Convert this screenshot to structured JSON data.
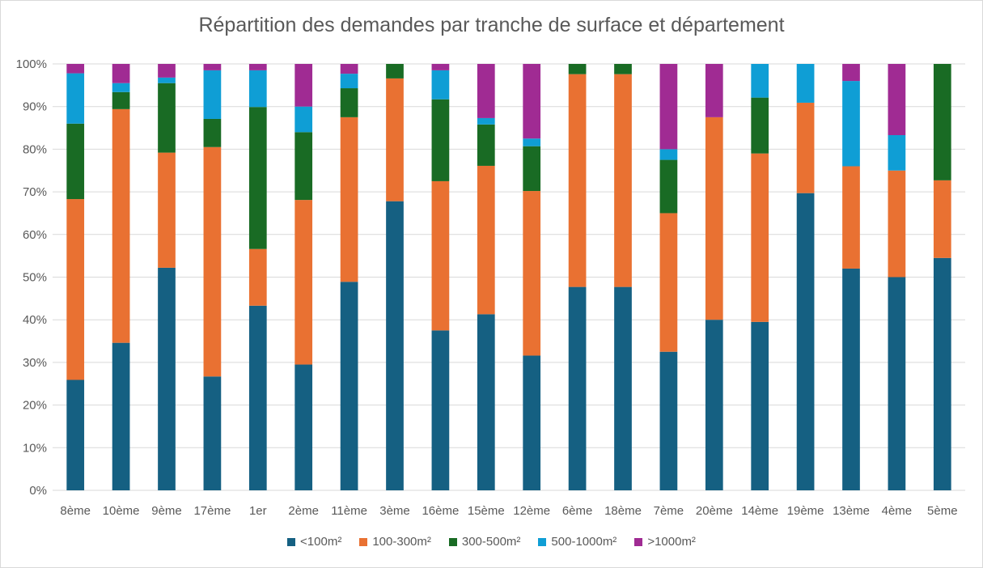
{
  "chart_data": {
    "type": "bar",
    "stacked": true,
    "title": "Répartition des demandes par tranche de surface et département",
    "xlabel": "",
    "ylabel": "",
    "ylim": [
      0,
      100
    ],
    "y_ticks": [
      "0%",
      "10%",
      "20%",
      "30%",
      "40%",
      "50%",
      "60%",
      "70%",
      "80%",
      "90%",
      "100%"
    ],
    "grid": true,
    "legend_position": "bottom",
    "categories": [
      "8ème",
      "10ème",
      "9ème",
      "17ème",
      "1er",
      "2ème",
      "11ème",
      "3ème",
      "16ème",
      "15ème",
      "12ème",
      "6ème",
      "18ème",
      "7ème",
      "20ème",
      "14ème",
      "19ème",
      "13ème",
      "4ème",
      "5ème"
    ],
    "series": [
      {
        "name": "<100m²",
        "color": "#156082",
        "values": [
          25.9,
          34.6,
          52.2,
          26.7,
          43.3,
          29.5,
          48.9,
          67.8,
          37.5,
          41.3,
          31.6,
          47.7,
          47.7,
          32.5,
          40.0,
          39.5,
          69.7,
          52.0,
          50.0,
          54.5
        ]
      },
      {
        "name": "100-300m²",
        "color": "#E97132",
        "values": [
          42.4,
          54.8,
          27.0,
          53.8,
          13.3,
          38.6,
          38.6,
          28.8,
          35.0,
          34.8,
          38.6,
          49.9,
          49.9,
          32.5,
          47.5,
          39.5,
          21.2,
          24.0,
          25.0,
          18.2
        ]
      },
      {
        "name": "300-500m²",
        "color": "#196B24",
        "values": [
          17.7,
          4.0,
          16.3,
          6.6,
          33.3,
          15.9,
          6.8,
          3.4,
          19.2,
          9.7,
          10.5,
          2.4,
          2.4,
          12.5,
          0,
          13.1,
          0,
          0,
          0,
          27.3
        ]
      },
      {
        "name": "500-1000m²",
        "color": "#0F9ED5",
        "values": [
          11.8,
          2.1,
          1.3,
          11.4,
          8.6,
          6.0,
          3.4,
          0,
          6.8,
          1.5,
          1.8,
          0,
          0,
          2.5,
          0,
          7.9,
          9.1,
          20.0,
          8.3,
          0
        ]
      },
      {
        "name": ">1000m²",
        "color": "#A02B93",
        "values": [
          2.2,
          4.5,
          3.2,
          1.5,
          1.5,
          10.0,
          2.3,
          0,
          1.5,
          12.7,
          17.5,
          0,
          0,
          20.0,
          12.5,
          0,
          0,
          4.0,
          16.7,
          0
        ]
      }
    ]
  }
}
